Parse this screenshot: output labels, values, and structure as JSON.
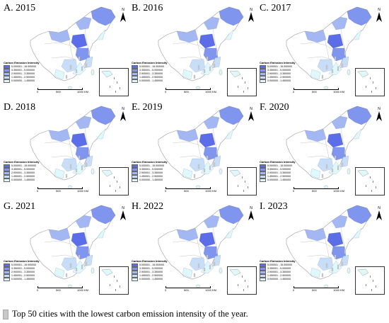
{
  "panels": [
    {
      "label": "A. 2015"
    },
    {
      "label": "B. 2016"
    },
    {
      "label": "C. 2017"
    },
    {
      "label": "D. 2018"
    },
    {
      "label": "E. 2019"
    },
    {
      "label": "F. 2020"
    },
    {
      "label": "G. 2021"
    },
    {
      "label": "H. 2022"
    },
    {
      "label": "I. 2023"
    }
  ],
  "legend": {
    "title": "Carbon Emission Intensity",
    "classes": [
      {
        "range": "5.000001 - 15.000000",
        "color": "#5b6ee8"
      },
      {
        "range": "3.350001 - 5.000000",
        "color": "#7f95ee"
      },
      {
        "range": "2.900001 - 3.350000",
        "color": "#a3b8f2"
      },
      {
        "range": "1.450001 - 2.900000",
        "color": "#c8ddf7"
      },
      {
        "range": "0.000000 - 1.450000",
        "color": "#dff8fb"
      }
    ]
  },
  "scale": {
    "t0": "0",
    "t1": "500",
    "t2": "1000 KM"
  },
  "north_label": "N",
  "footnote": "Top 50 cities with the lowest carbon emission intensity of the year.",
  "colors": {
    "highlight": "#c8c8c8",
    "outline": "#9a9a9a"
  }
}
